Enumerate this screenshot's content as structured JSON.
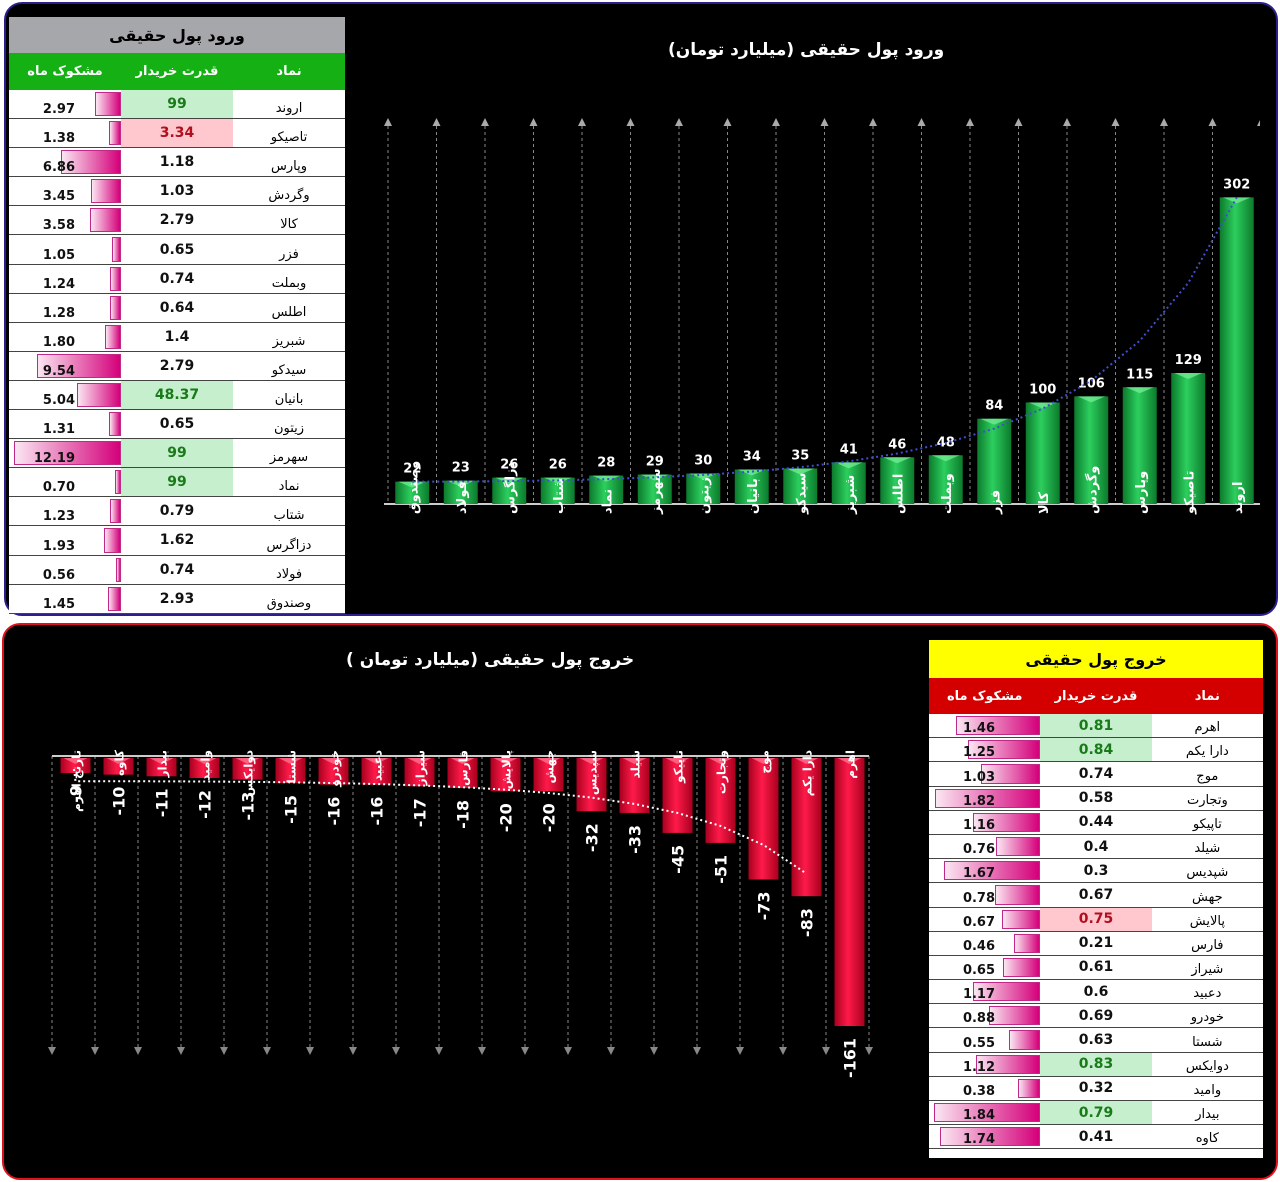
{
  "inflow_table": {
    "title": "ورود پول حقیقی",
    "headers": {
      "symbol": "نماد",
      "buyer_power": "قدرت خریدار",
      "suspicious": "مشکوک ماه"
    },
    "rows": [
      {
        "symbol": "اروند",
        "buyer_power": "99",
        "suspicious": "2.97",
        "highlight": "green"
      },
      {
        "symbol": "تاصیکو",
        "buyer_power": "3.34",
        "suspicious": "1.38",
        "highlight": "red"
      },
      {
        "symbol": "وپارس",
        "buyer_power": "1.18",
        "suspicious": "6.86",
        "highlight": ""
      },
      {
        "symbol": "وگردش",
        "buyer_power": "1.03",
        "suspicious": "3.45",
        "highlight": ""
      },
      {
        "symbol": "کالا",
        "buyer_power": "2.79",
        "suspicious": "3.58",
        "highlight": ""
      },
      {
        "symbol": "فزر",
        "buyer_power": "0.65",
        "suspicious": "1.05",
        "highlight": ""
      },
      {
        "symbol": "وبملت",
        "buyer_power": "0.74",
        "suspicious": "1.24",
        "highlight": ""
      },
      {
        "symbol": "اطلس",
        "buyer_power": "0.64",
        "suspicious": "1.28",
        "highlight": ""
      },
      {
        "symbol": "شبریز",
        "buyer_power": "1.4",
        "suspicious": "1.80",
        "highlight": ""
      },
      {
        "symbol": "سیدکو",
        "buyer_power": "2.79",
        "suspicious": "9.54",
        "highlight": ""
      },
      {
        "symbol": "بانیان",
        "buyer_power": "48.37",
        "suspicious": "5.04",
        "highlight": "green"
      },
      {
        "symbol": "زیتون",
        "buyer_power": "0.65",
        "suspicious": "1.31",
        "highlight": ""
      },
      {
        "symbol": "سهرمز",
        "buyer_power": "99",
        "suspicious": "12.19",
        "highlight": "green"
      },
      {
        "symbol": "نماد",
        "buyer_power": "99",
        "suspicious": "0.70",
        "highlight": "green"
      },
      {
        "symbol": "شتاب",
        "buyer_power": "0.79",
        "suspicious": "1.23",
        "highlight": ""
      },
      {
        "symbol": "دزاگرس",
        "buyer_power": "1.62",
        "suspicious": "1.93",
        "highlight": ""
      },
      {
        "symbol": "فولاد",
        "buyer_power": "0.74",
        "suspicious": "0.56",
        "highlight": ""
      },
      {
        "symbol": "وصندوق",
        "buyer_power": "2.93",
        "suspicious": "1.45",
        "highlight": ""
      }
    ]
  },
  "outflow_table": {
    "title": "خروج پول حقیقی",
    "headers": {
      "symbol": "نماد",
      "buyer_power": "قدرت خریدار",
      "suspicious": "مشکوک ماه"
    },
    "rows": [
      {
        "symbol": "اهرم",
        "buyer_power": "0.81",
        "suspicious": "1.46",
        "highlight": "green"
      },
      {
        "symbol": "دارا یکم",
        "buyer_power": "0.84",
        "suspicious": "1.25",
        "highlight": "green"
      },
      {
        "symbol": "موج",
        "buyer_power": "0.74",
        "suspicious": "1.03",
        "highlight": ""
      },
      {
        "symbol": "وتجارت",
        "buyer_power": "0.58",
        "suspicious": "1.82",
        "highlight": ""
      },
      {
        "symbol": "تاپیکو",
        "buyer_power": "0.44",
        "suspicious": "1.16",
        "highlight": ""
      },
      {
        "symbol": "شیلد",
        "buyer_power": "0.4",
        "suspicious": "0.76",
        "highlight": ""
      },
      {
        "symbol": "شپدیس",
        "buyer_power": "0.3",
        "suspicious": "1.67",
        "highlight": ""
      },
      {
        "symbol": "جهش",
        "buyer_power": "0.67",
        "suspicious": "0.78",
        "highlight": ""
      },
      {
        "symbol": "پالایش",
        "buyer_power": "0.75",
        "suspicious": "0.67",
        "highlight": "red"
      },
      {
        "symbol": "فارس",
        "buyer_power": "0.21",
        "suspicious": "0.46",
        "highlight": ""
      },
      {
        "symbol": "شیراز",
        "buyer_power": "0.61",
        "suspicious": "0.65",
        "highlight": ""
      },
      {
        "symbol": "دعبید",
        "buyer_power": "0.6",
        "suspicious": "1.17",
        "highlight": ""
      },
      {
        "symbol": "خودرو",
        "buyer_power": "0.69",
        "suspicious": "0.88",
        "highlight": ""
      },
      {
        "symbol": "شستا",
        "buyer_power": "0.63",
        "suspicious": "0.55",
        "highlight": ""
      },
      {
        "symbol": "دوایکس",
        "buyer_power": "0.83",
        "suspicious": "1.12",
        "highlight": "green"
      },
      {
        "symbol": "وامید",
        "buyer_power": "0.32",
        "suspicious": "0.38",
        "highlight": ""
      },
      {
        "symbol": "بیدار",
        "buyer_power": "0.79",
        "suspicious": "1.84",
        "highlight": "green"
      },
      {
        "symbol": "کاوه",
        "buyer_power": "0.41",
        "suspicious": "1.74",
        "highlight": ""
      }
    ]
  },
  "chart_data": [
    {
      "type": "bar",
      "title": "ورود پول حقیقی (میلیارد تومان)",
      "xlabel": "",
      "ylabel": "",
      "categories": [
        "وصندوق",
        "فولاد",
        "دزاگرس",
        "شتاب",
        "نماد",
        "سهرمز",
        "زیتون",
        "بانیان",
        "سیدکو",
        "شبریز",
        "اطلس",
        "وبملت",
        "فزر",
        "کالا",
        "وگردش",
        "وپارس",
        "تاصیکو",
        "اروند"
      ],
      "values": [
        22,
        23,
        26,
        26,
        28,
        29,
        30,
        34,
        35,
        41,
        46,
        48,
        84,
        100,
        106,
        115,
        129,
        302
      ],
      "ylim": [
        0,
        330
      ],
      "grid": "vertical dashed with arrowheads",
      "trendline": "exponential dotted blue",
      "bar_color": "#1fa84a"
    },
    {
      "type": "bar",
      "title": "خروج پول حقیقی (میلیارد تومان )",
      "xlabel": "",
      "ylabel": "",
      "categories": [
        "تارنج اهرم",
        "کاوه",
        "بیدار",
        "وامید",
        "دوایکس",
        "شستا",
        "خودرو",
        "دعبید",
        "شیراز",
        "فارس",
        "پالایش",
        "جهش",
        "شپدیس",
        "شیلد",
        "تاپیکو",
        "وتجارت",
        "موج",
        "دارا یکم",
        "اهرم"
      ],
      "values": [
        -9,
        -10,
        -11,
        -12,
        -13,
        -15,
        -16,
        -16,
        -17,
        -18,
        -20,
        -20,
        -32,
        -33,
        -45,
        -51,
        -73,
        -83,
        -161
      ],
      "ylim": [
        -175,
        0
      ],
      "grid": "vertical dashed with arrowheads",
      "trendline": "exponential dotted white",
      "bar_color": "#e8103c"
    }
  ]
}
